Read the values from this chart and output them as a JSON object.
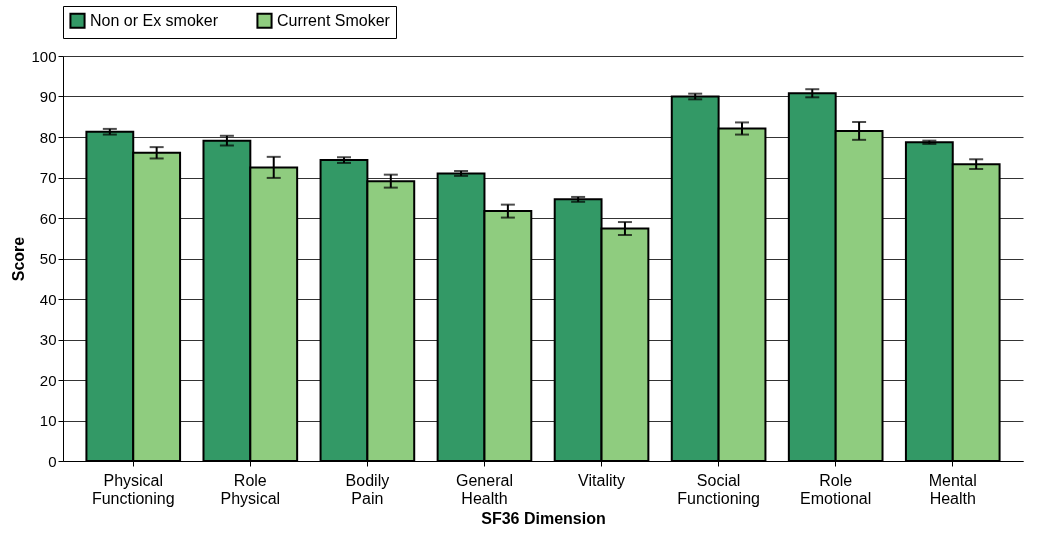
{
  "chart_data": {
    "type": "bar",
    "xlabel": "SF36 Dimension",
    "ylabel": "Score",
    "categories": [
      "Physical Functioning",
      "Role Physical",
      "Bodily Pain",
      "General Health",
      "Vitality",
      "Social Functioning",
      "Role Emotional",
      "Mental Health"
    ],
    "series": [
      {
        "name": "Non or  Ex smoker",
        "color": "#339966",
        "values": [
          81.3,
          79.1,
          74.3,
          71.0,
          64.6,
          90.0,
          90.8,
          78.7
        ],
        "errors": [
          0.7,
          1.2,
          0.7,
          0.6,
          0.6,
          0.7,
          1.0,
          0.4
        ]
      },
      {
        "name": "Current Smoker",
        "color": "#8fcc7f",
        "values": [
          76.1,
          72.5,
          69.1,
          61.7,
          57.4,
          82.1,
          81.5,
          73.3
        ],
        "errors": [
          1.4,
          2.6,
          1.6,
          1.6,
          1.6,
          1.5,
          2.2,
          1.2
        ]
      }
    ],
    "ylim": [
      0,
      100
    ],
    "yticks": [
      0,
      10,
      20,
      30,
      40,
      50,
      60,
      70,
      80,
      90,
      100
    ],
    "grid": "y",
    "legend": "top"
  }
}
